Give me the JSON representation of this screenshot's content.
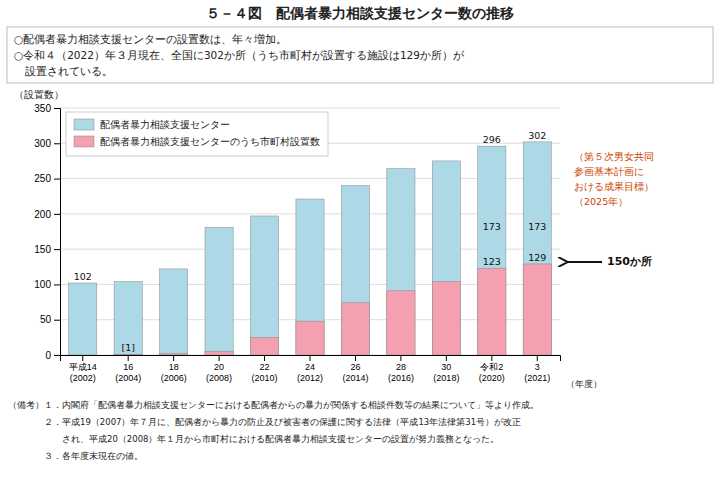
{
  "chart_data": {
    "type": "bar",
    "title": "５－４図　配偶者暴力相談支援センター数の推移",
    "text_box": [
      "○配偶者暴力相談支援センターの設置数は、年々増加。",
      "○令和４（2022）年３月現在、全国に302か所（うち市町村が設置する施設は129か所）が",
      "　設置されている。"
    ],
    "ylabel": "（設置数）",
    "xlabel": "（年度）",
    "categories": [
      "平成14\n(2002)",
      "16\n(2004)",
      "18\n(2006)",
      "20\n(2008)",
      "22\n(2010)",
      "24\n(2012)",
      "26\n(2014)",
      "28\n(2016)",
      "30\n(2018)",
      "令和2\n(2020)",
      "3\n(2021)"
    ],
    "series": [
      {
        "name": "配偶者暴力相談支援センター",
        "color": "#ADD8E6",
        "values": [
          102,
          104,
          122,
          181,
          197,
          221,
          240,
          264,
          275,
          296,
          302
        ],
        "value_labels": [
          "102",
          null,
          null,
          null,
          null,
          null,
          null,
          null,
          null,
          "296",
          "302"
        ]
      },
      {
        "name": "配偶者暴力相談支援センターのうち市町村設置数",
        "color": "#F4A0B0",
        "values": [
          0,
          1,
          2,
          5,
          25,
          48,
          74,
          91,
          104,
          123,
          129
        ],
        "value_labels": [
          null,
          "[1]",
          null,
          null,
          null,
          null,
          null,
          null,
          null,
          "123",
          "129"
        ]
      }
    ],
    "stacked": false,
    "data_labels": true,
    "ylim": [
      0,
      350
    ],
    "yticks": [
      0,
      50,
      100,
      150,
      200,
      250,
      300,
      350
    ],
    "grid": true,
    "legend": "upper left",
    "annotations": [
      {
        "text": "173",
        "category": "令和2\n(2020)",
        "value": 173
      },
      {
        "text": "173",
        "category": "3\n(2021)",
        "value": 173
      }
    ],
    "side_annotation": {
      "lines": [
        "（第５次男女共同",
        "参画基本計画に",
        "おける成果目標）",
        "（2025年）"
      ],
      "arrow_label": "150か所",
      "color": "#CC4400"
    },
    "notes": [
      "（備考）１．内閣府「配偶者暴力相談支援センターにおける配偶者からの暴力が関係する相談件数等の結果について」等より作成。",
      "　　　　２．平成19（2007）年７月に、配偶者から暴力の防止及び被害者の保護に関する法律（平成13年法律第31号）が改正",
      "　　　　　　され、平成20（2008）年１月から市町村における配偶者暴力相談支援センターの設置が努力義務となった。",
      "　　　　３．各年度末現在の値。"
    ]
  }
}
